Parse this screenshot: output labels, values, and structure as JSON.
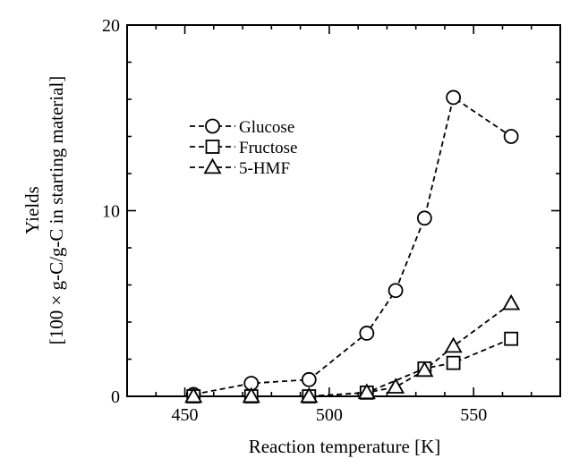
{
  "chart_data": {
    "type": "line",
    "title": "",
    "xlabel": "Reaction temperature [K]",
    "ylabel_line1": "Yields",
    "ylabel_line2": "[100 ×  g-C/g-C in starting material]",
    "xlim": [
      430,
      580
    ],
    "ylim": [
      0,
      20
    ],
    "xticks": [
      450,
      500,
      550
    ],
    "yticks": [
      0,
      10,
      20
    ],
    "x_minor_step": 10,
    "y_minor_step": 2,
    "grid": false,
    "legend_position": "upper-left",
    "series": [
      {
        "name": "Glucose",
        "marker": "circle",
        "x": [
          453,
          473,
          493,
          513,
          523,
          533,
          543,
          563
        ],
        "values": [
          0.1,
          0.7,
          0.9,
          3.4,
          5.7,
          9.6,
          16.1,
          14.0
        ]
      },
      {
        "name": "Fructose",
        "marker": "square",
        "x": [
          453,
          473,
          493,
          513,
          533,
          543,
          563
        ],
        "values": [
          0.0,
          0.0,
          0.0,
          0.2,
          1.5,
          1.8,
          3.1
        ]
      },
      {
        "name": "5-HMF",
        "marker": "triangle",
        "x": [
          453,
          473,
          493,
          513,
          523,
          533,
          543,
          563
        ],
        "values": [
          0.0,
          0.0,
          0.0,
          0.2,
          0.5,
          1.4,
          2.7,
          5.0
        ]
      }
    ]
  }
}
